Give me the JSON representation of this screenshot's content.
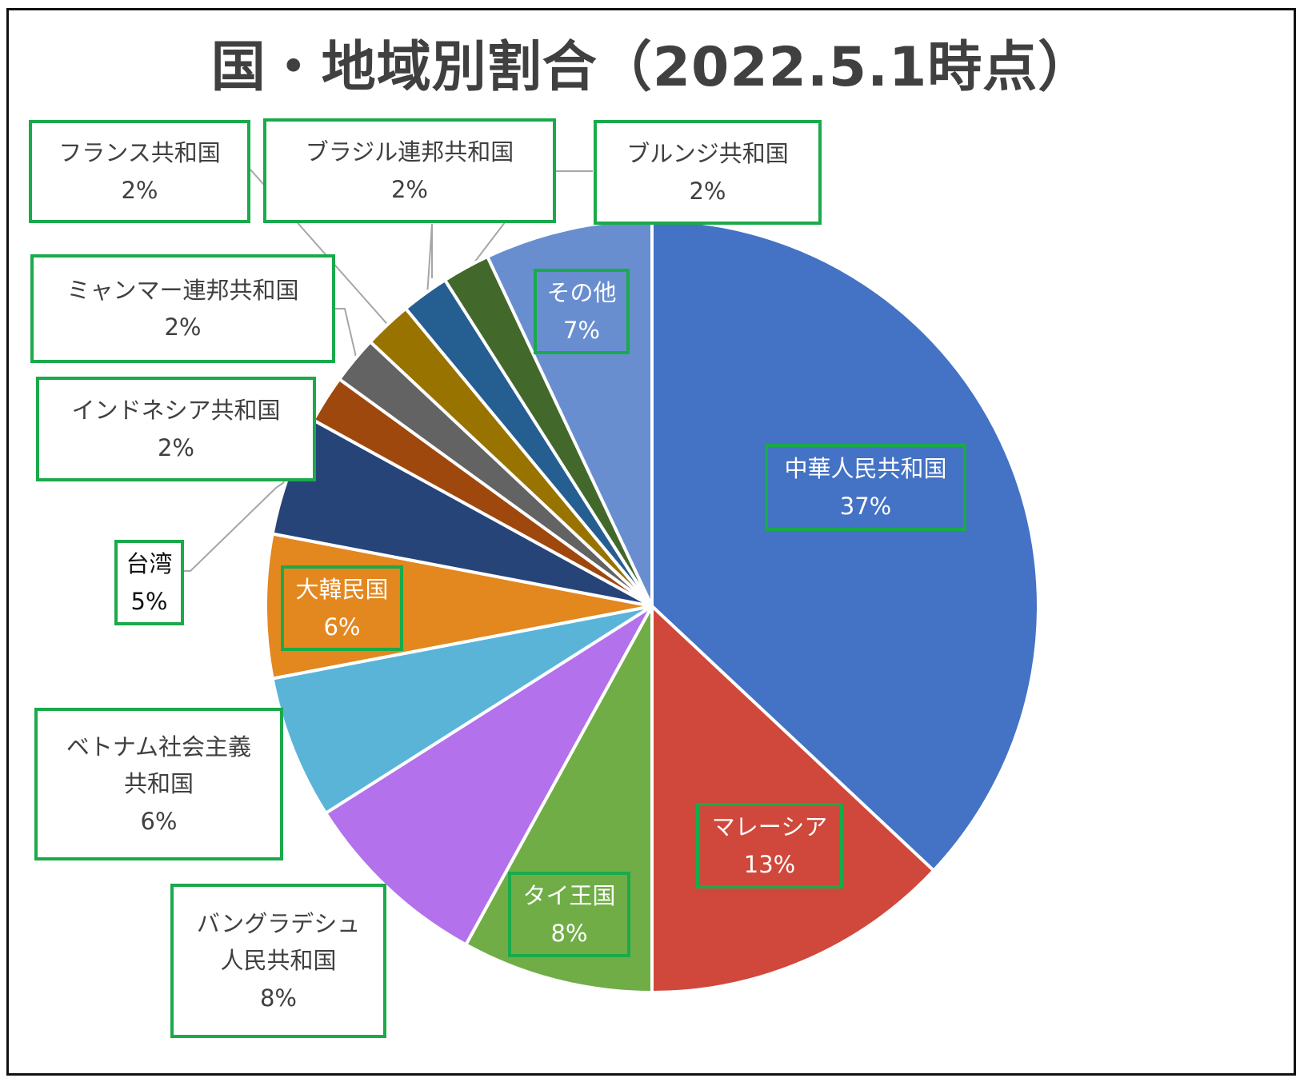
{
  "chart_data": {
    "type": "pie",
    "title": "国・地域別割合（2022.5.1時点）",
    "slices": [
      {
        "name": "中華人民共和国",
        "value": 37,
        "label": "37%",
        "color": "#4472c4"
      },
      {
        "name": "マレーシア",
        "value": 13,
        "label": "13%",
        "color": "#d0483b"
      },
      {
        "name": "タイ王国",
        "value": 8,
        "label": "8%",
        "color": "#70ad47"
      },
      {
        "name": "バングラデシュ人民共和国",
        "value": 8,
        "label": "8%",
        "color": "#b371ec"
      },
      {
        "name": "ベトナム社会主義共和国",
        "value": 6,
        "label": "6%",
        "color": "#5ab4d8"
      },
      {
        "name": "大韓民国",
        "value": 6,
        "label": "6%",
        "color": "#e3871f"
      },
      {
        "name": "台湾",
        "value": 5,
        "label": "5%",
        "color": "#264478"
      },
      {
        "name": "インドネシア共和国",
        "value": 2,
        "label": "2%",
        "color": "#9e480e"
      },
      {
        "name": "ミャンマー連邦共和国",
        "value": 2,
        "label": "2%",
        "color": "#636363"
      },
      {
        "name": "フランス共和国",
        "value": 2,
        "label": "2%",
        "color": "#997300"
      },
      {
        "name": "ブラジル連邦共和国",
        "value": 2,
        "label": "2%",
        "color": "#255e91"
      },
      {
        "name": "ブルンジ共和国",
        "value": 2,
        "label": "2%",
        "color": "#43682b"
      },
      {
        "name": "その他",
        "value": 7,
        "label": "7%",
        "color": "#698ed0"
      }
    ]
  },
  "labels": [
    {
      "name": "中華人民共和国",
      "pct": "37%"
    },
    {
      "name": "マレーシア",
      "pct": "13%"
    },
    {
      "name": "タイ王国",
      "pct": "8%"
    },
    {
      "name": "バングラデシュ\n人民共和国",
      "pct": "8%"
    },
    {
      "name": "ベトナム社会主義\n共和国",
      "pct": "6%"
    },
    {
      "name": "大韓民国",
      "pct": "6%"
    },
    {
      "name": "台湾",
      "pct": "5%"
    },
    {
      "name": "インドネシア共和国",
      "pct": "2%"
    },
    {
      "name": "ミャンマー連邦共和国",
      "pct": "2%"
    },
    {
      "name": "フランス共和国",
      "pct": "2%"
    },
    {
      "name": "ブラジル連邦共和国",
      "pct": "2%"
    },
    {
      "name": "ブルンジ共和国",
      "pct": "2%"
    },
    {
      "name": "その他",
      "pct": "7%"
    }
  ]
}
